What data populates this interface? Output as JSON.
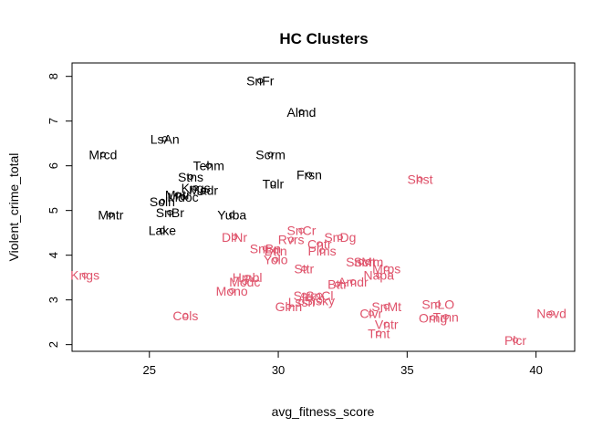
{
  "chart_data": {
    "type": "scatter",
    "title": "HC Clusters",
    "xlabel": "avg_fitness_score",
    "ylabel": "Violent_crime_total",
    "xlim": [
      22,
      41.5
    ],
    "ylim": [
      1.85,
      8.3
    ],
    "xticks": [
      25,
      30,
      35,
      40
    ],
    "yticks": [
      2,
      3,
      4,
      5,
      6,
      7,
      8
    ],
    "grid": false,
    "legend": "none",
    "cluster_colors": {
      "1": "#000000",
      "2": "#DF536B"
    },
    "points": [
      {
        "label": "SnFr",
        "x": 29.3,
        "y": 7.9,
        "cluster": 1
      },
      {
        "label": "Almd",
        "x": 30.9,
        "y": 7.2,
        "cluster": 1
      },
      {
        "label": "LsAn",
        "x": 25.6,
        "y": 6.6,
        "cluster": 1
      },
      {
        "label": "Mrcd",
        "x": 23.2,
        "y": 6.25,
        "cluster": 1
      },
      {
        "label": "Scrm",
        "x": 29.7,
        "y": 6.25,
        "cluster": 1
      },
      {
        "label": "Tehm",
        "x": 27.3,
        "y": 6.0,
        "cluster": 1
      },
      {
        "label": "Frsn",
        "x": 31.2,
        "y": 5.8,
        "cluster": 1
      },
      {
        "label": "Stns",
        "x": 26.6,
        "y": 5.75,
        "cluster": 1
      },
      {
        "label": "Tulr",
        "x": 29.8,
        "y": 5.6,
        "cluster": 1
      },
      {
        "label": "Kngs",
        "x": 26.8,
        "y": 5.5,
        "cluster": 1
      },
      {
        "label": "Madr",
        "x": 27.1,
        "y": 5.45,
        "cluster": 1
      },
      {
        "label": "Mntr",
        "x": 26.1,
        "y": 5.35,
        "cluster": 1
      },
      {
        "label": "Mdoc",
        "x": 26.3,
        "y": 5.3,
        "cluster": 1
      },
      {
        "label": "Soln",
        "x": 25.5,
        "y": 5.2,
        "cluster": 1
      },
      {
        "label": "SnBr",
        "x": 25.8,
        "y": 4.95,
        "cluster": 1
      },
      {
        "label": "Mntr",
        "x": 23.5,
        "y": 4.9,
        "cluster": 1
      },
      {
        "label": "Yuba",
        "x": 28.2,
        "y": 4.9,
        "cluster": 1
      },
      {
        "label": "Lake",
        "x": 25.5,
        "y": 4.55,
        "cluster": 1
      },
      {
        "label": "DlNr",
        "x": 28.3,
        "y": 4.4,
        "cluster": 2
      },
      {
        "label": "SnCr",
        "x": 30.9,
        "y": 4.55,
        "cluster": 2
      },
      {
        "label": "Rvrs",
        "x": 30.5,
        "y": 4.35,
        "cluster": 2
      },
      {
        "label": "SnDg",
        "x": 32.4,
        "y": 4.4,
        "cluster": 2
      },
      {
        "label": "Cntr",
        "x": 31.6,
        "y": 4.25,
        "cluster": 2
      },
      {
        "label": "SnBn",
        "x": 29.5,
        "y": 4.15,
        "cluster": 2
      },
      {
        "label": "Bttn",
        "x": 29.9,
        "y": 4.1,
        "cluster": 2
      },
      {
        "label": "Plms",
        "x": 31.7,
        "y": 4.1,
        "cluster": 2
      },
      {
        "label": "Yolo",
        "x": 29.9,
        "y": 3.9,
        "cluster": 2
      },
      {
        "label": "SnMt",
        "x": 33.2,
        "y": 3.85,
        "cluster": 2
      },
      {
        "label": "Scrm",
        "x": 33.5,
        "y": 3.85,
        "cluster": 2
      },
      {
        "label": "Mrps",
        "x": 34.2,
        "y": 3.7,
        "cluster": 2
      },
      {
        "label": "Sttr",
        "x": 31.0,
        "y": 3.7,
        "cluster": 2
      },
      {
        "label": "Napa",
        "x": 33.9,
        "y": 3.55,
        "cluster": 2
      },
      {
        "label": "Amdr",
        "x": 32.9,
        "y": 3.4,
        "cluster": 2
      },
      {
        "label": "Bttr",
        "x": 32.3,
        "y": 3.35,
        "cluster": 2
      },
      {
        "label": "Hmbl",
        "x": 28.8,
        "y": 3.5,
        "cluster": 2
      },
      {
        "label": "Modc",
        "x": 28.7,
        "y": 3.4,
        "cluster": 2
      },
      {
        "label": "Mono",
        "x": 28.2,
        "y": 3.2,
        "cluster": 2
      },
      {
        "label": "Srrr",
        "x": 31.0,
        "y": 3.1,
        "cluster": 2
      },
      {
        "label": "SnCl",
        "x": 31.6,
        "y": 3.1,
        "cluster": 2
      },
      {
        "label": "Lssn",
        "x": 30.9,
        "y": 2.95,
        "cluster": 2
      },
      {
        "label": "Sisky",
        "x": 31.6,
        "y": 2.98,
        "cluster": 2
      },
      {
        "label": "Glnn",
        "x": 30.4,
        "y": 2.85,
        "cluster": 2
      },
      {
        "label": "SnLO",
        "x": 36.2,
        "y": 2.9,
        "cluster": 2
      },
      {
        "label": "SnMt",
        "x": 34.2,
        "y": 2.85,
        "cluster": 2
      },
      {
        "label": "Clvr",
        "x": 33.6,
        "y": 2.7,
        "cluster": 2
      },
      {
        "label": "Trnn",
        "x": 36.5,
        "y": 2.62,
        "cluster": 2
      },
      {
        "label": "Orng",
        "x": 36.0,
        "y": 2.6,
        "cluster": 2
      },
      {
        "label": "Nevd",
        "x": 40.6,
        "y": 2.7,
        "cluster": 2
      },
      {
        "label": "Vntr",
        "x": 34.2,
        "y": 2.45,
        "cluster": 2
      },
      {
        "label": "Trnt",
        "x": 33.9,
        "y": 2.25,
        "cluster": 2
      },
      {
        "label": "Cols",
        "x": 26.4,
        "y": 2.65,
        "cluster": 2
      },
      {
        "label": "Kngs",
        "x": 22.5,
        "y": 3.55,
        "cluster": 2
      },
      {
        "label": "Shst",
        "x": 35.5,
        "y": 5.7,
        "cluster": 2
      },
      {
        "label": "Plcr",
        "x": 39.2,
        "y": 2.1,
        "cluster": 2
      }
    ]
  }
}
